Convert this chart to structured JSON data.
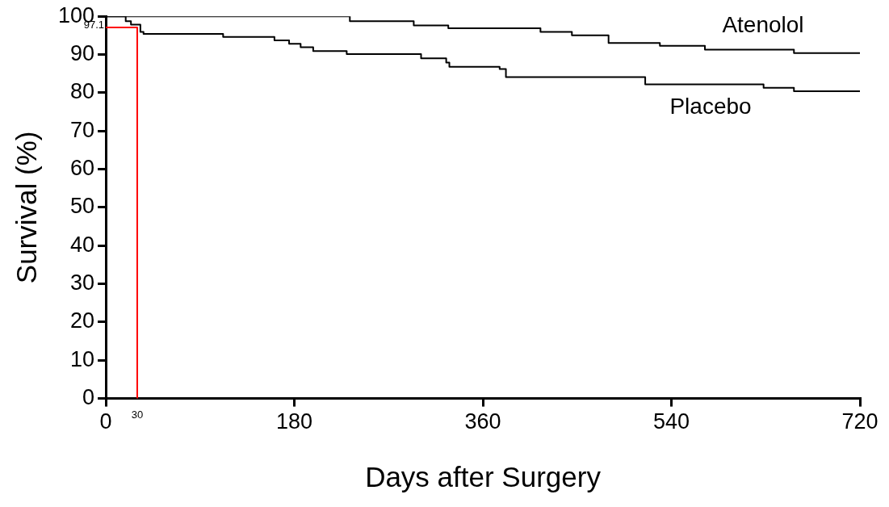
{
  "chart_data": {
    "type": "step",
    "xlabel": "Days after Surgery",
    "ylabel": "Survival (%)",
    "xlim": [
      0,
      720
    ],
    "xticks": [
      0,
      180,
      360,
      540,
      720
    ],
    "ylim": [
      0,
      100
    ],
    "yticks": [
      0,
      10,
      20,
      30,
      40,
      50,
      60,
      70,
      80,
      90,
      100
    ],
    "grid": false,
    "legend": false,
    "series": [
      {
        "name": "Atenolol",
        "color": "#000000",
        "x": [
          0,
          233,
          294,
          327,
          415,
          445,
          480,
          529,
          572,
          657,
          720
        ],
        "values": [
          100,
          98.7,
          97.6,
          96.9,
          95.9,
          95.0,
          93.0,
          92.3,
          91.3,
          90.4,
          90.4
        ]
      },
      {
        "name": "Placebo",
        "color": "#000000",
        "x": [
          0,
          19,
          24,
          33,
          36,
          112,
          161,
          175,
          186,
          198,
          230,
          301,
          325,
          328,
          376,
          382,
          515,
          628,
          657,
          720
        ],
        "values": [
          100,
          98.7,
          97.8,
          95.9,
          95.4,
          94.6,
          93.7,
          92.8,
          91.9,
          90.9,
          90.1,
          89.0,
          87.9,
          86.8,
          86.2,
          84.1,
          82.2,
          81.3,
          80.4,
          80.4
        ]
      },
      {
        "type": "line",
        "color": "#ff0000",
        "x": [
          0,
          30,
          30
        ],
        "values": [
          97.1,
          97.1,
          0
        ]
      }
    ],
    "annotations": [
      {
        "text": "97.1",
        "x": 0,
        "y": 97.1
      },
      {
        "text": "30",
        "x": 30,
        "y": 0
      }
    ]
  }
}
